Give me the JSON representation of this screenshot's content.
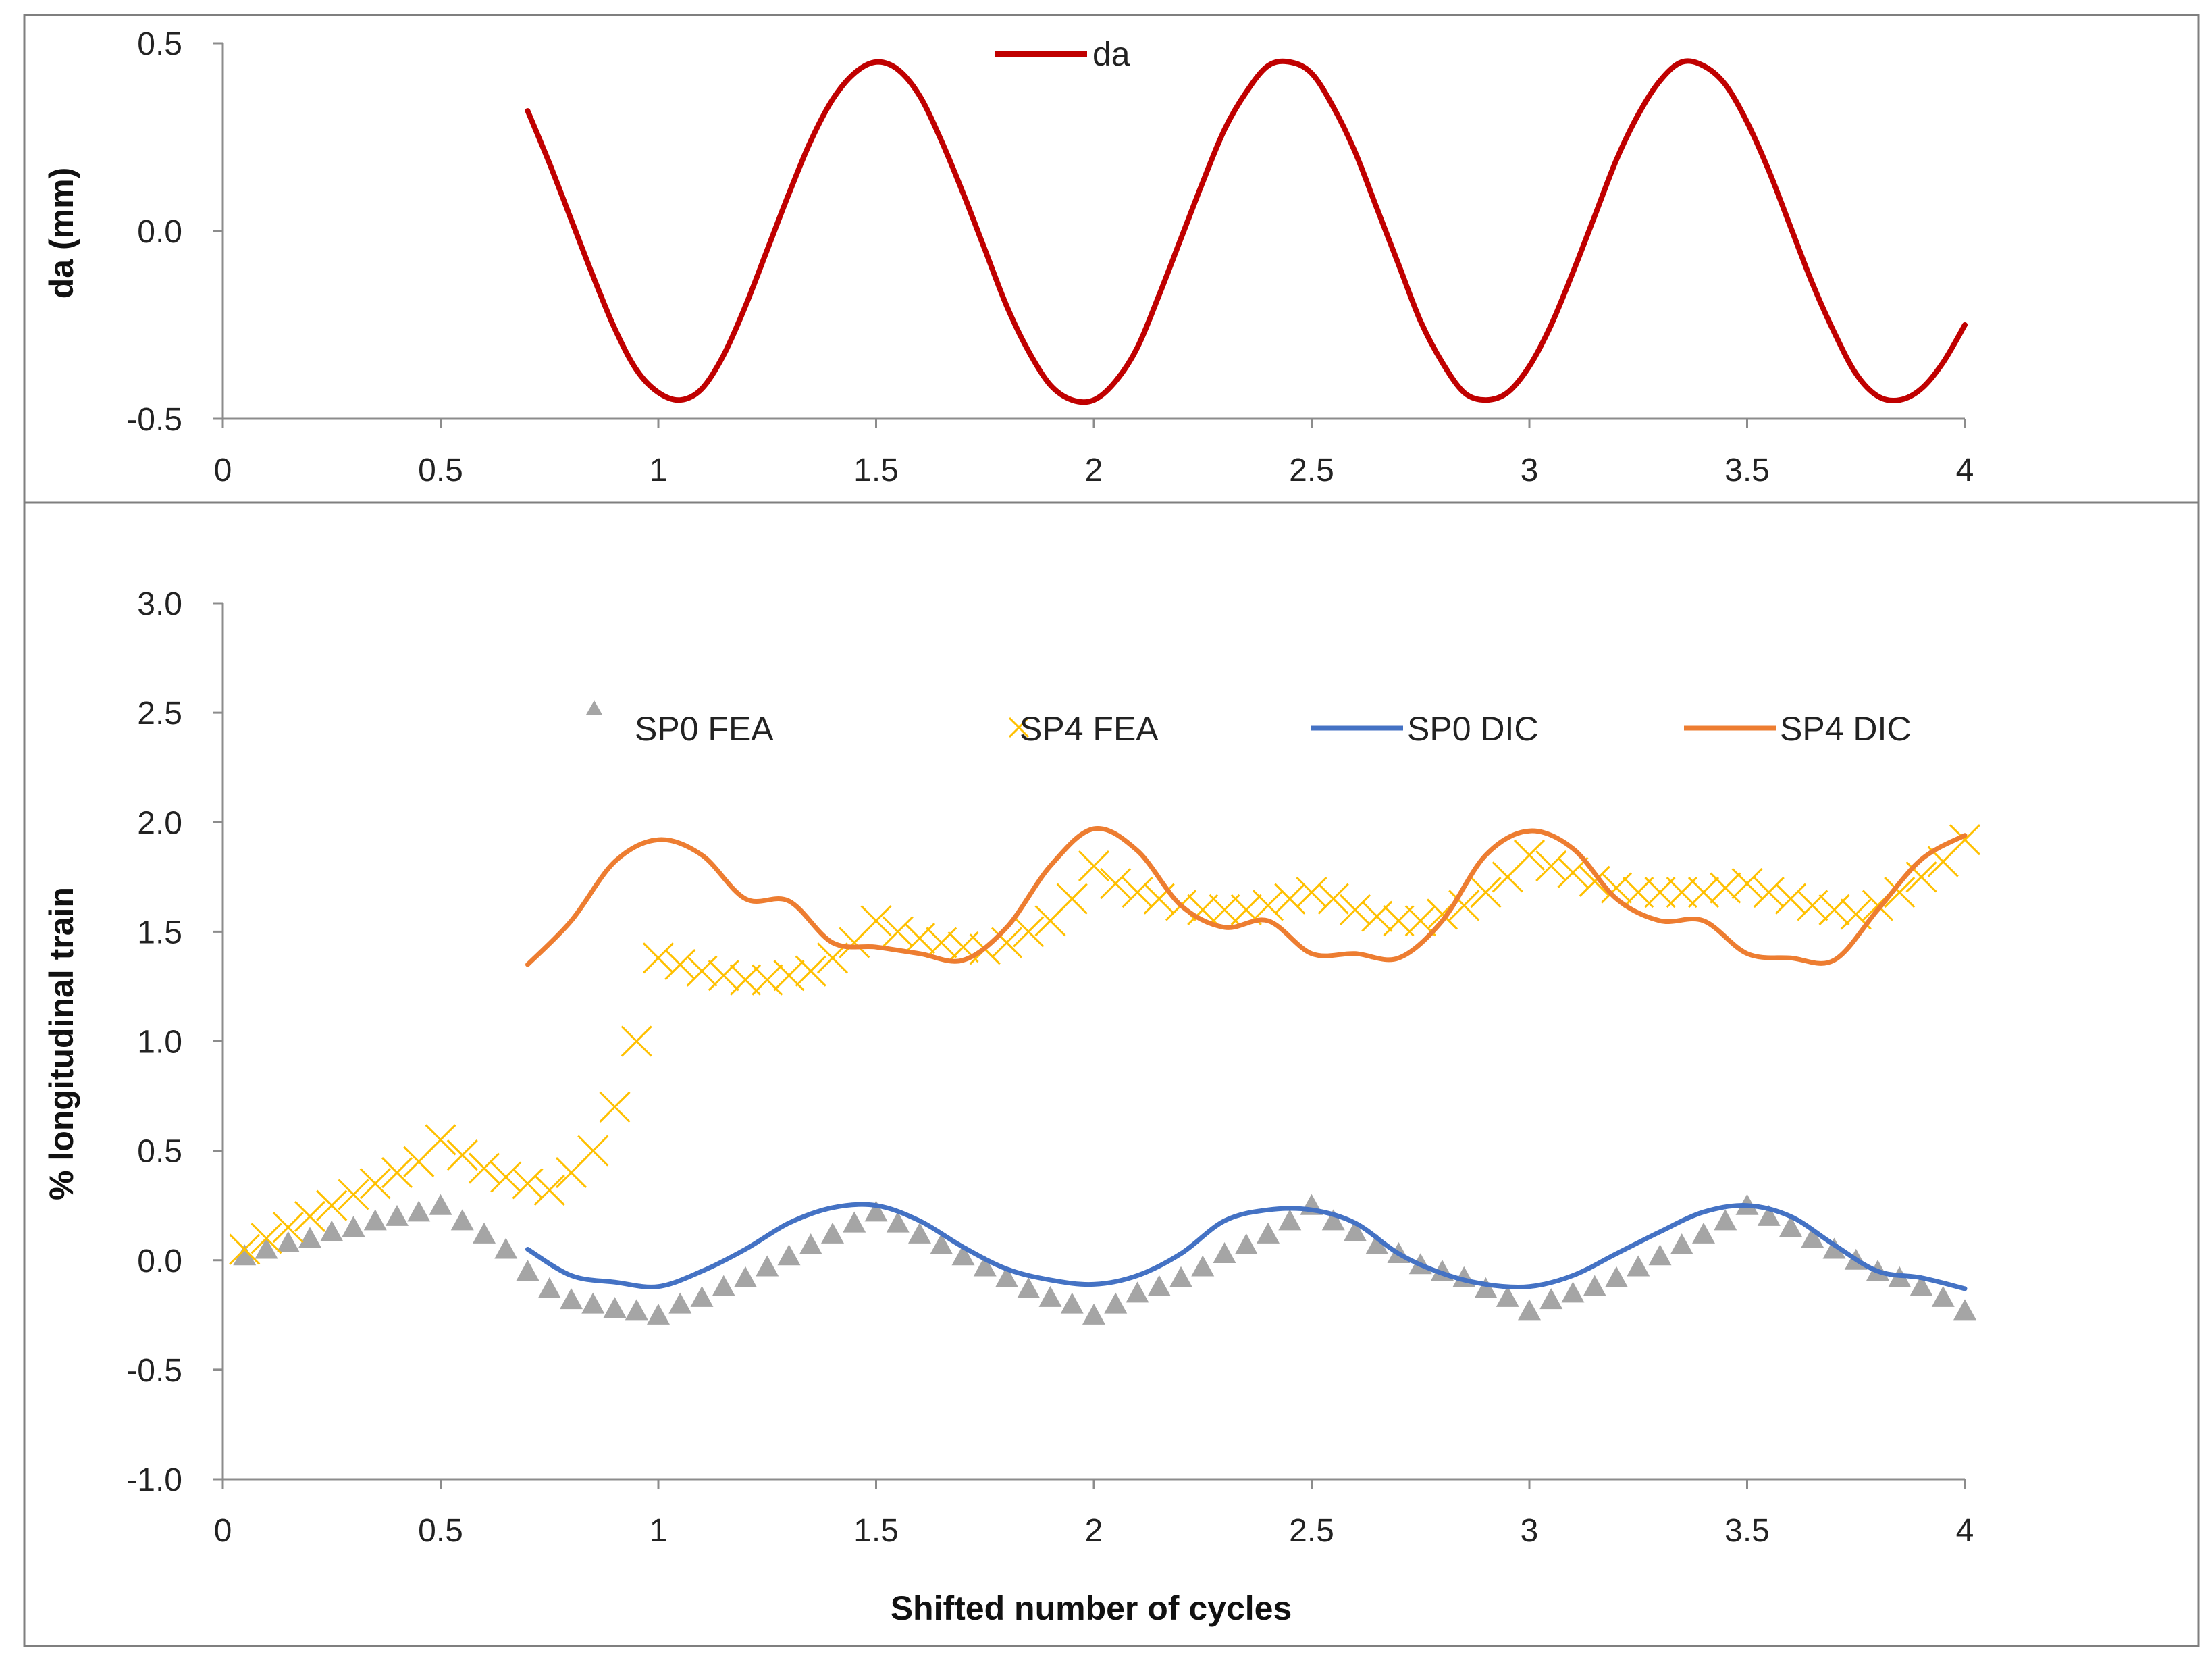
{
  "chart_data": [
    {
      "type": "line",
      "panel": "top",
      "title": "",
      "xlabel": "",
      "ylabel": "da (mm)",
      "xlim": [
        0,
        4
      ],
      "ylim": [
        -0.5,
        0.5
      ],
      "x_ticks": [
        "0",
        "0.5",
        "1",
        "1.5",
        "2",
        "2.5",
        "3",
        "3.5",
        "4"
      ],
      "y_ticks": [
        "0.5",
        "0.0",
        "-0.5"
      ],
      "grid": false,
      "legend_position": "top-center",
      "series": [
        {
          "name": "da",
          "color": "#c00000",
          "style": "line",
          "x": [
            0.7,
            0.75,
            0.8,
            0.85,
            0.9,
            0.95,
            1.0,
            1.05,
            1.1,
            1.15,
            1.2,
            1.25,
            1.3,
            1.35,
            1.4,
            1.45,
            1.5,
            1.55,
            1.6,
            1.65,
            1.7,
            1.75,
            1.8,
            1.85,
            1.9,
            1.95,
            2.0,
            2.05,
            2.1,
            2.15,
            2.2,
            2.25,
            2.3,
            2.35,
            2.4,
            2.45,
            2.5,
            2.55,
            2.6,
            2.65,
            2.7,
            2.75,
            2.8,
            2.85,
            2.9,
            2.95,
            3.0,
            3.05,
            3.1,
            3.15,
            3.2,
            3.25,
            3.3,
            3.35,
            3.4,
            3.45,
            3.5,
            3.55,
            3.6,
            3.65,
            3.7,
            3.75,
            3.8,
            3.85,
            3.9,
            3.95,
            4.0
          ],
          "y": [
            0.32,
            0.18,
            0.03,
            -0.12,
            -0.26,
            -0.37,
            -0.43,
            -0.45,
            -0.42,
            -0.33,
            -0.2,
            -0.05,
            0.1,
            0.24,
            0.35,
            0.42,
            0.45,
            0.43,
            0.36,
            0.24,
            0.1,
            -0.05,
            -0.2,
            -0.32,
            -0.41,
            -0.45,
            -0.45,
            -0.4,
            -0.31,
            -0.17,
            -0.02,
            0.13,
            0.27,
            0.37,
            0.44,
            0.45,
            0.42,
            0.33,
            0.21,
            0.06,
            -0.09,
            -0.24,
            -0.35,
            -0.43,
            -0.45,
            -0.43,
            -0.36,
            -0.25,
            -0.11,
            0.04,
            0.19,
            0.31,
            0.4,
            0.45,
            0.44,
            0.39,
            0.29,
            0.16,
            0.01,
            -0.14,
            -0.27,
            -0.38,
            -0.44,
            -0.45,
            -0.42,
            -0.35,
            -0.25
          ]
        }
      ]
    },
    {
      "type": "line",
      "panel": "bottom",
      "title": "",
      "xlabel": "Shifted number of cycles",
      "ylabel": "% longitudinal  train",
      "xlim": [
        0,
        4
      ],
      "ylim": [
        -1.0,
        3.0
      ],
      "x_ticks": [
        "0",
        "0.5",
        "1",
        "1.5",
        "2",
        "2.5",
        "3",
        "3.5",
        "4"
      ],
      "y_ticks": [
        "3.0",
        "2.5",
        "2.0",
        "1.5",
        "1.0",
        "0.5",
        "0.0",
        "-0.5",
        "-1.0"
      ],
      "grid": false,
      "legend_position": "top",
      "series": [
        {
          "name": "SP0 FEA",
          "color": "#a5a5a5",
          "style": "triangle-markers",
          "x": [
            0.05,
            0.1,
            0.15,
            0.2,
            0.25,
            0.3,
            0.35,
            0.4,
            0.45,
            0.5,
            0.55,
            0.6,
            0.65,
            0.7,
            0.75,
            0.8,
            0.85,
            0.9,
            0.95,
            1.0,
            1.05,
            1.1,
            1.15,
            1.2,
            1.25,
            1.3,
            1.35,
            1.4,
            1.45,
            1.5,
            1.55,
            1.6,
            1.65,
            1.7,
            1.75,
            1.8,
            1.85,
            1.9,
            1.95,
            2.0,
            2.05,
            2.1,
            2.15,
            2.2,
            2.25,
            2.3,
            2.35,
            2.4,
            2.45,
            2.5,
            2.55,
            2.6,
            2.65,
            2.7,
            2.75,
            2.8,
            2.85,
            2.9,
            2.95,
            3.0,
            3.05,
            3.1,
            3.15,
            3.2,
            3.25,
            3.3,
            3.35,
            3.4,
            3.45,
            3.5,
            3.55,
            3.6,
            3.65,
            3.7,
            3.75,
            3.8,
            3.85,
            3.9,
            3.95,
            4.0
          ],
          "y": [
            0.02,
            0.05,
            0.08,
            0.1,
            0.13,
            0.15,
            0.18,
            0.2,
            0.22,
            0.25,
            0.18,
            0.12,
            0.05,
            -0.05,
            -0.13,
            -0.18,
            -0.2,
            -0.22,
            -0.23,
            -0.25,
            -0.2,
            -0.17,
            -0.12,
            -0.08,
            -0.03,
            0.02,
            0.07,
            0.12,
            0.17,
            0.22,
            0.17,
            0.12,
            0.07,
            0.02,
            -0.03,
            -0.08,
            -0.13,
            -0.17,
            -0.2,
            -0.25,
            -0.2,
            -0.15,
            -0.12,
            -0.08,
            -0.03,
            0.03,
            0.07,
            0.12,
            0.18,
            0.25,
            0.18,
            0.13,
            0.07,
            0.03,
            -0.02,
            -0.05,
            -0.08,
            -0.13,
            -0.17,
            -0.23,
            -0.18,
            -0.15,
            -0.12,
            -0.08,
            -0.03,
            0.02,
            0.07,
            0.12,
            0.18,
            0.25,
            0.2,
            0.15,
            0.1,
            0.05,
            0.0,
            -0.05,
            -0.08,
            -0.12,
            -0.17,
            -0.23
          ]
        },
        {
          "name": "SP4 FEA",
          "color": "#ffc000",
          "style": "x-markers",
          "x": [
            0.05,
            0.1,
            0.15,
            0.2,
            0.25,
            0.3,
            0.35,
            0.4,
            0.45,
            0.5,
            0.55,
            0.6,
            0.65,
            0.7,
            0.75,
            0.8,
            0.85,
            0.9,
            0.95,
            1.0,
            1.05,
            1.1,
            1.15,
            1.2,
            1.25,
            1.3,
            1.35,
            1.4,
            1.45,
            1.5,
            1.55,
            1.6,
            1.65,
            1.7,
            1.75,
            1.8,
            1.85,
            1.9,
            1.95,
            2.0,
            2.05,
            2.1,
            2.15,
            2.2,
            2.25,
            2.3,
            2.35,
            2.4,
            2.45,
            2.5,
            2.55,
            2.6,
            2.65,
            2.7,
            2.75,
            2.8,
            2.85,
            2.9,
            2.95,
            3.0,
            3.05,
            3.1,
            3.15,
            3.2,
            3.25,
            3.3,
            3.35,
            3.4,
            3.45,
            3.5,
            3.55,
            3.6,
            3.65,
            3.7,
            3.75,
            3.8,
            3.85,
            3.9,
            3.95,
            4.0
          ],
          "y": [
            0.05,
            0.1,
            0.15,
            0.2,
            0.25,
            0.3,
            0.35,
            0.4,
            0.45,
            0.55,
            0.48,
            0.42,
            0.38,
            0.35,
            0.32,
            0.4,
            0.5,
            0.7,
            1.0,
            1.38,
            1.35,
            1.32,
            1.3,
            1.28,
            1.28,
            1.3,
            1.32,
            1.38,
            1.45,
            1.55,
            1.5,
            1.47,
            1.45,
            1.43,
            1.42,
            1.45,
            1.5,
            1.55,
            1.65,
            1.8,
            1.72,
            1.68,
            1.65,
            1.62,
            1.6,
            1.6,
            1.6,
            1.62,
            1.65,
            1.68,
            1.65,
            1.6,
            1.57,
            1.55,
            1.55,
            1.58,
            1.62,
            1.68,
            1.75,
            1.85,
            1.8,
            1.77,
            1.73,
            1.7,
            1.68,
            1.68,
            1.68,
            1.68,
            1.7,
            1.72,
            1.68,
            1.65,
            1.62,
            1.6,
            1.58,
            1.62,
            1.68,
            1.75,
            1.82,
            1.92
          ]
        },
        {
          "name": "SP0 DIC",
          "color": "#4472c4",
          "style": "line",
          "x": [
            0.7,
            0.8,
            0.9,
            1.0,
            1.1,
            1.2,
            1.3,
            1.4,
            1.5,
            1.6,
            1.7,
            1.8,
            1.9,
            2.0,
            2.1,
            2.2,
            2.3,
            2.4,
            2.5,
            2.6,
            2.7,
            2.8,
            2.9,
            3.0,
            3.1,
            3.2,
            3.3,
            3.4,
            3.5,
            3.6,
            3.7,
            3.8,
            3.9,
            4.0
          ],
          "y": [
            0.05,
            -0.07,
            -0.1,
            -0.12,
            -0.05,
            0.05,
            0.17,
            0.24,
            0.25,
            0.18,
            0.06,
            -0.04,
            -0.09,
            -0.11,
            -0.07,
            0.03,
            0.18,
            0.23,
            0.23,
            0.17,
            0.03,
            -0.06,
            -0.11,
            -0.12,
            -0.07,
            0.03,
            0.13,
            0.22,
            0.25,
            0.2,
            0.07,
            -0.05,
            -0.08,
            -0.13
          ]
        },
        {
          "name": "SP4 DIC",
          "color": "#ed7d31",
          "style": "line",
          "x": [
            0.7,
            0.8,
            0.9,
            1.0,
            1.1,
            1.2,
            1.3,
            1.4,
            1.5,
            1.6,
            1.7,
            1.8,
            1.9,
            2.0,
            2.1,
            2.2,
            2.3,
            2.4,
            2.5,
            2.6,
            2.7,
            2.8,
            2.9,
            3.0,
            3.1,
            3.2,
            3.3,
            3.4,
            3.5,
            3.6,
            3.7,
            3.8,
            3.9,
            4.0
          ],
          "y": [
            1.35,
            1.55,
            1.82,
            1.92,
            1.85,
            1.65,
            1.64,
            1.45,
            1.43,
            1.4,
            1.37,
            1.52,
            1.8,
            1.97,
            1.87,
            1.62,
            1.52,
            1.55,
            1.4,
            1.4,
            1.38,
            1.55,
            1.85,
            1.96,
            1.88,
            1.65,
            1.55,
            1.55,
            1.4,
            1.38,
            1.37,
            1.6,
            1.83,
            1.94
          ]
        }
      ]
    }
  ]
}
